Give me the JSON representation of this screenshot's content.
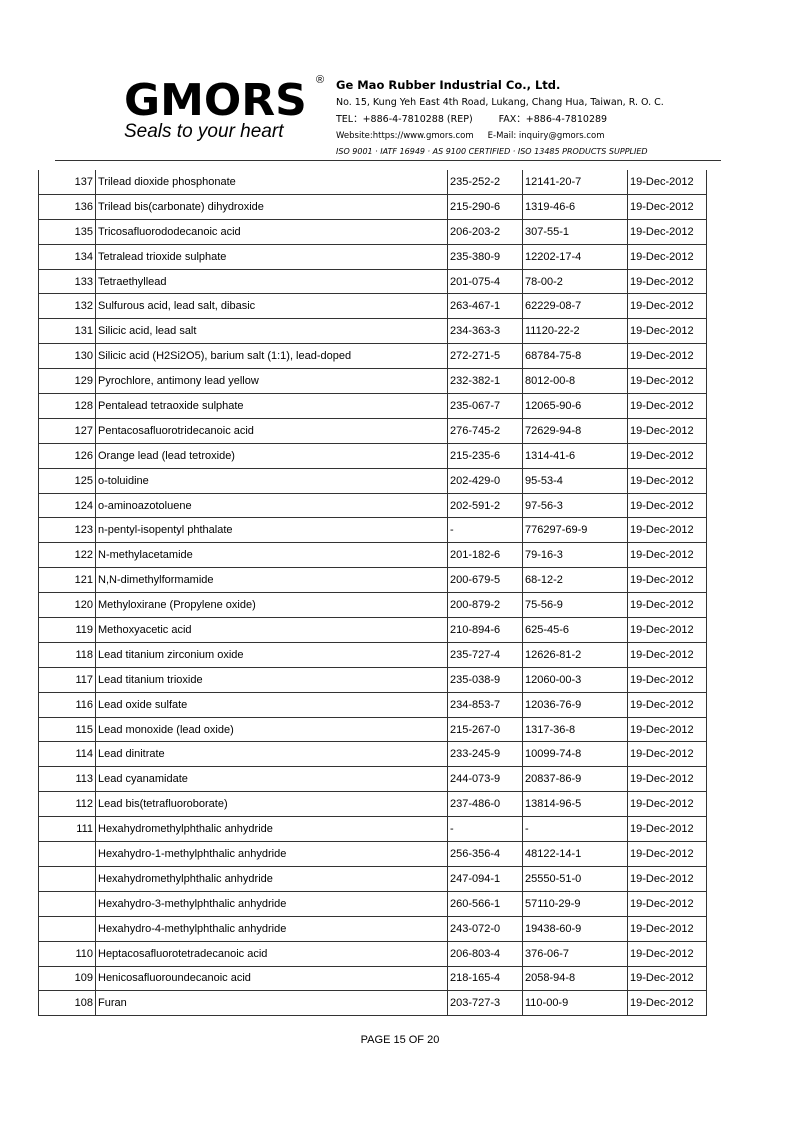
{
  "header": {
    "logo_text": "GMORS",
    "registered_mark": "®",
    "slogan": "Seals to your heart",
    "company": "Ge Mao Rubber Industrial Co., Ltd.",
    "address": "No. 15, Kung Yeh East 4th Road, Lukang, Chang Hua, Taiwan, R. O. C.",
    "tel": "TEL：+886-4-7810288 (REP)",
    "fax": "FAX：+886-4-7810289",
    "website": "Website:https://www.gmors.com",
    "email": "E-Mail: inquiry@gmors.com",
    "certifications": "ISO 9001  ·  IATF 16949  ·  AS 9100 CERTIFIED  ·  ISO 13485 PRODUCTS SUPPLIED"
  },
  "table": {
    "rows": [
      [
        "137",
        "Trilead dioxide phosphonate",
        "235-252-2",
        "12141-20-7",
        "19-Dec-2012"
      ],
      [
        "136",
        "Trilead bis(carbonate) dihydroxide",
        "215-290-6",
        "1319-46-6",
        "19-Dec-2012"
      ],
      [
        "135",
        "Tricosafluorododecanoic acid",
        "206-203-2",
        "307-55-1",
        "19-Dec-2012"
      ],
      [
        "134",
        "Tetralead trioxide sulphate",
        "235-380-9",
        "12202-17-4",
        "19-Dec-2012"
      ],
      [
        "133",
        "Tetraethyllead",
        "201-075-4",
        "78-00-2",
        "19-Dec-2012"
      ],
      [
        "132",
        "Sulfurous acid, lead salt, dibasic",
        "263-467-1",
        "62229-08-7",
        "19-Dec-2012"
      ],
      [
        "131",
        "Silicic acid, lead salt",
        "234-363-3",
        "11120-22-2",
        "19-Dec-2012"
      ],
      [
        "130",
        "Silicic acid (H2Si2O5), barium salt (1:1), lead-doped",
        "272-271-5",
        "68784-75-8",
        "19-Dec-2012"
      ],
      [
        "129",
        "Pyrochlore, antimony lead yellow",
        "232-382-1",
        "8012-00-8",
        "19-Dec-2012"
      ],
      [
        "128",
        "Pentalead tetraoxide sulphate",
        "235-067-7",
        "12065-90-6",
        "19-Dec-2012"
      ],
      [
        "127",
        "Pentacosafluorotridecanoic acid",
        "276-745-2",
        "72629-94-8",
        "19-Dec-2012"
      ],
      [
        "126",
        "Orange lead (lead tetroxide)",
        "215-235-6",
        "1314-41-6",
        "19-Dec-2012"
      ],
      [
        "125",
        "o-toluidine",
        "202-429-0",
        "95-53-4",
        "19-Dec-2012"
      ],
      [
        "124",
        "o-aminoazotoluene",
        "202-591-2",
        "97-56-3",
        "19-Dec-2012"
      ],
      [
        "123",
        "n-pentyl-isopentyl phthalate",
        "-",
        "776297-69-9",
        "19-Dec-2012"
      ],
      [
        "122",
        "N-methylacetamide",
        "201-182-6",
        "79-16-3",
        "19-Dec-2012"
      ],
      [
        "121",
        "N,N-dimethylformamide",
        "200-679-5",
        "68-12-2",
        "19-Dec-2012"
      ],
      [
        "120",
        "Methyloxirane (Propylene oxide)",
        "200-879-2",
        "75-56-9",
        "19-Dec-2012"
      ],
      [
        "119",
        "Methoxyacetic acid",
        "210-894-6",
        "625-45-6",
        "19-Dec-2012"
      ],
      [
        "118",
        "Lead titanium zirconium oxide",
        "235-727-4",
        "12626-81-2",
        "19-Dec-2012"
      ],
      [
        "117",
        "Lead titanium trioxide",
        "235-038-9",
        "12060-00-3",
        "19-Dec-2012"
      ],
      [
        "116",
        "Lead oxide sulfate",
        "234-853-7",
        "12036-76-9",
        "19-Dec-2012"
      ],
      [
        "115",
        "Lead monoxide (lead oxide)",
        "215-267-0",
        "1317-36-8",
        "19-Dec-2012"
      ],
      [
        "114",
        "Lead dinitrate",
        "233-245-9",
        "10099-74-8",
        "19-Dec-2012"
      ],
      [
        "113",
        "Lead cyanamidate",
        "244-073-9",
        "20837-86-9",
        "19-Dec-2012"
      ],
      [
        "112",
        "Lead bis(tetrafluoroborate)",
        "237-486-0",
        "13814-96-5",
        "19-Dec-2012"
      ],
      [
        "111",
        "Hexahydromethylphthalic anhydride",
        "-",
        "-",
        "19-Dec-2012"
      ],
      [
        "",
        "Hexahydro-1-methylphthalic anhydride",
        "256-356-4",
        "48122-14-1",
        "19-Dec-2012"
      ],
      [
        "",
        "Hexahydromethylphthalic anhydride",
        "247-094-1",
        "25550-51-0",
        "19-Dec-2012"
      ],
      [
        "",
        "Hexahydro-3-methylphthalic anhydride",
        "260-566-1",
        "57110-29-9",
        "19-Dec-2012"
      ],
      [
        "",
        "Hexahydro-4-methylphthalic anhydride",
        "243-072-0",
        "19438-60-9",
        "19-Dec-2012"
      ],
      [
        "110",
        "Heptacosafluorotetradecanoic acid",
        "206-803-4",
        "376-06-7",
        "19-Dec-2012"
      ],
      [
        "109",
        "Henicosafluoroundecanoic acid",
        "218-165-4",
        "2058-94-8",
        "19-Dec-2012"
      ],
      [
        "108",
        "Furan",
        "203-727-3",
        "110-00-9",
        "19-Dec-2012"
      ]
    ]
  },
  "footer": {
    "page_label": "PAGE  15  OF 20"
  }
}
